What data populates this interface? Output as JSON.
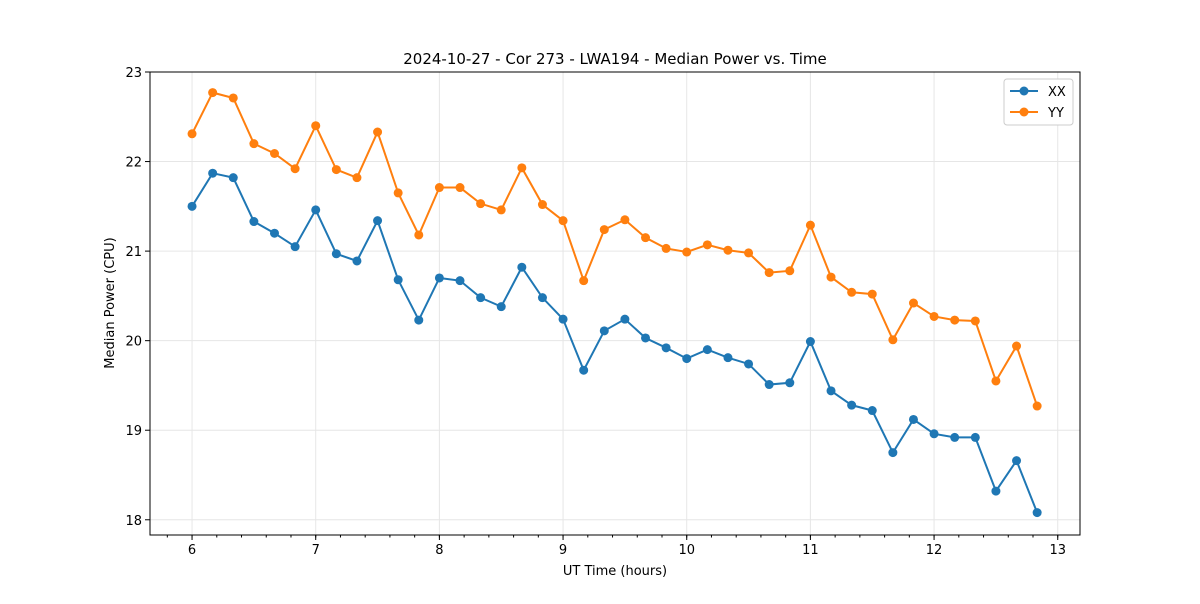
{
  "chart_data": {
    "type": "line",
    "title": "2024-10-27 - Cor 273 - LWA194 - Median Power vs. Time",
    "xlabel": "UT Time (hours)",
    "ylabel": "Median Power (CPU)",
    "xlim": [
      5.66,
      13.18
    ],
    "ylim": [
      17.83,
      23.0
    ],
    "xticks": [
      6,
      7,
      8,
      9,
      10,
      11,
      12,
      13
    ],
    "yticks": [
      18,
      19,
      20,
      21,
      22,
      23
    ],
    "grid": true,
    "legend_position": "top-right",
    "x_start": 6.0,
    "x_step": 0.16667,
    "series": [
      {
        "name": "XX",
        "color": "#1f77b4",
        "values": [
          21.5,
          21.87,
          21.82,
          21.33,
          21.2,
          21.05,
          21.46,
          20.97,
          20.89,
          21.34,
          20.68,
          20.23,
          20.7,
          20.67,
          20.48,
          20.38,
          20.82,
          20.48,
          20.24,
          19.67,
          20.11,
          20.24,
          20.03,
          19.92,
          19.8,
          19.9,
          19.81,
          19.74,
          19.51,
          19.53,
          19.99,
          19.44,
          19.28,
          19.22,
          18.75,
          19.12,
          18.96,
          18.92,
          18.92,
          18.32,
          18.66,
          18.08
        ]
      },
      {
        "name": "YY",
        "color": "#ff7f0e",
        "values": [
          22.31,
          22.77,
          22.71,
          22.2,
          22.09,
          21.92,
          22.4,
          21.91,
          21.82,
          22.33,
          21.65,
          21.18,
          21.71,
          21.71,
          21.53,
          21.46,
          21.93,
          21.52,
          21.34,
          20.67,
          21.24,
          21.35,
          21.15,
          21.03,
          20.99,
          21.07,
          21.01,
          20.98,
          20.76,
          20.78,
          21.29,
          20.71,
          20.54,
          20.52,
          20.01,
          20.42,
          20.27,
          20.23,
          20.22,
          19.55,
          19.94,
          19.27
        ]
      }
    ]
  }
}
